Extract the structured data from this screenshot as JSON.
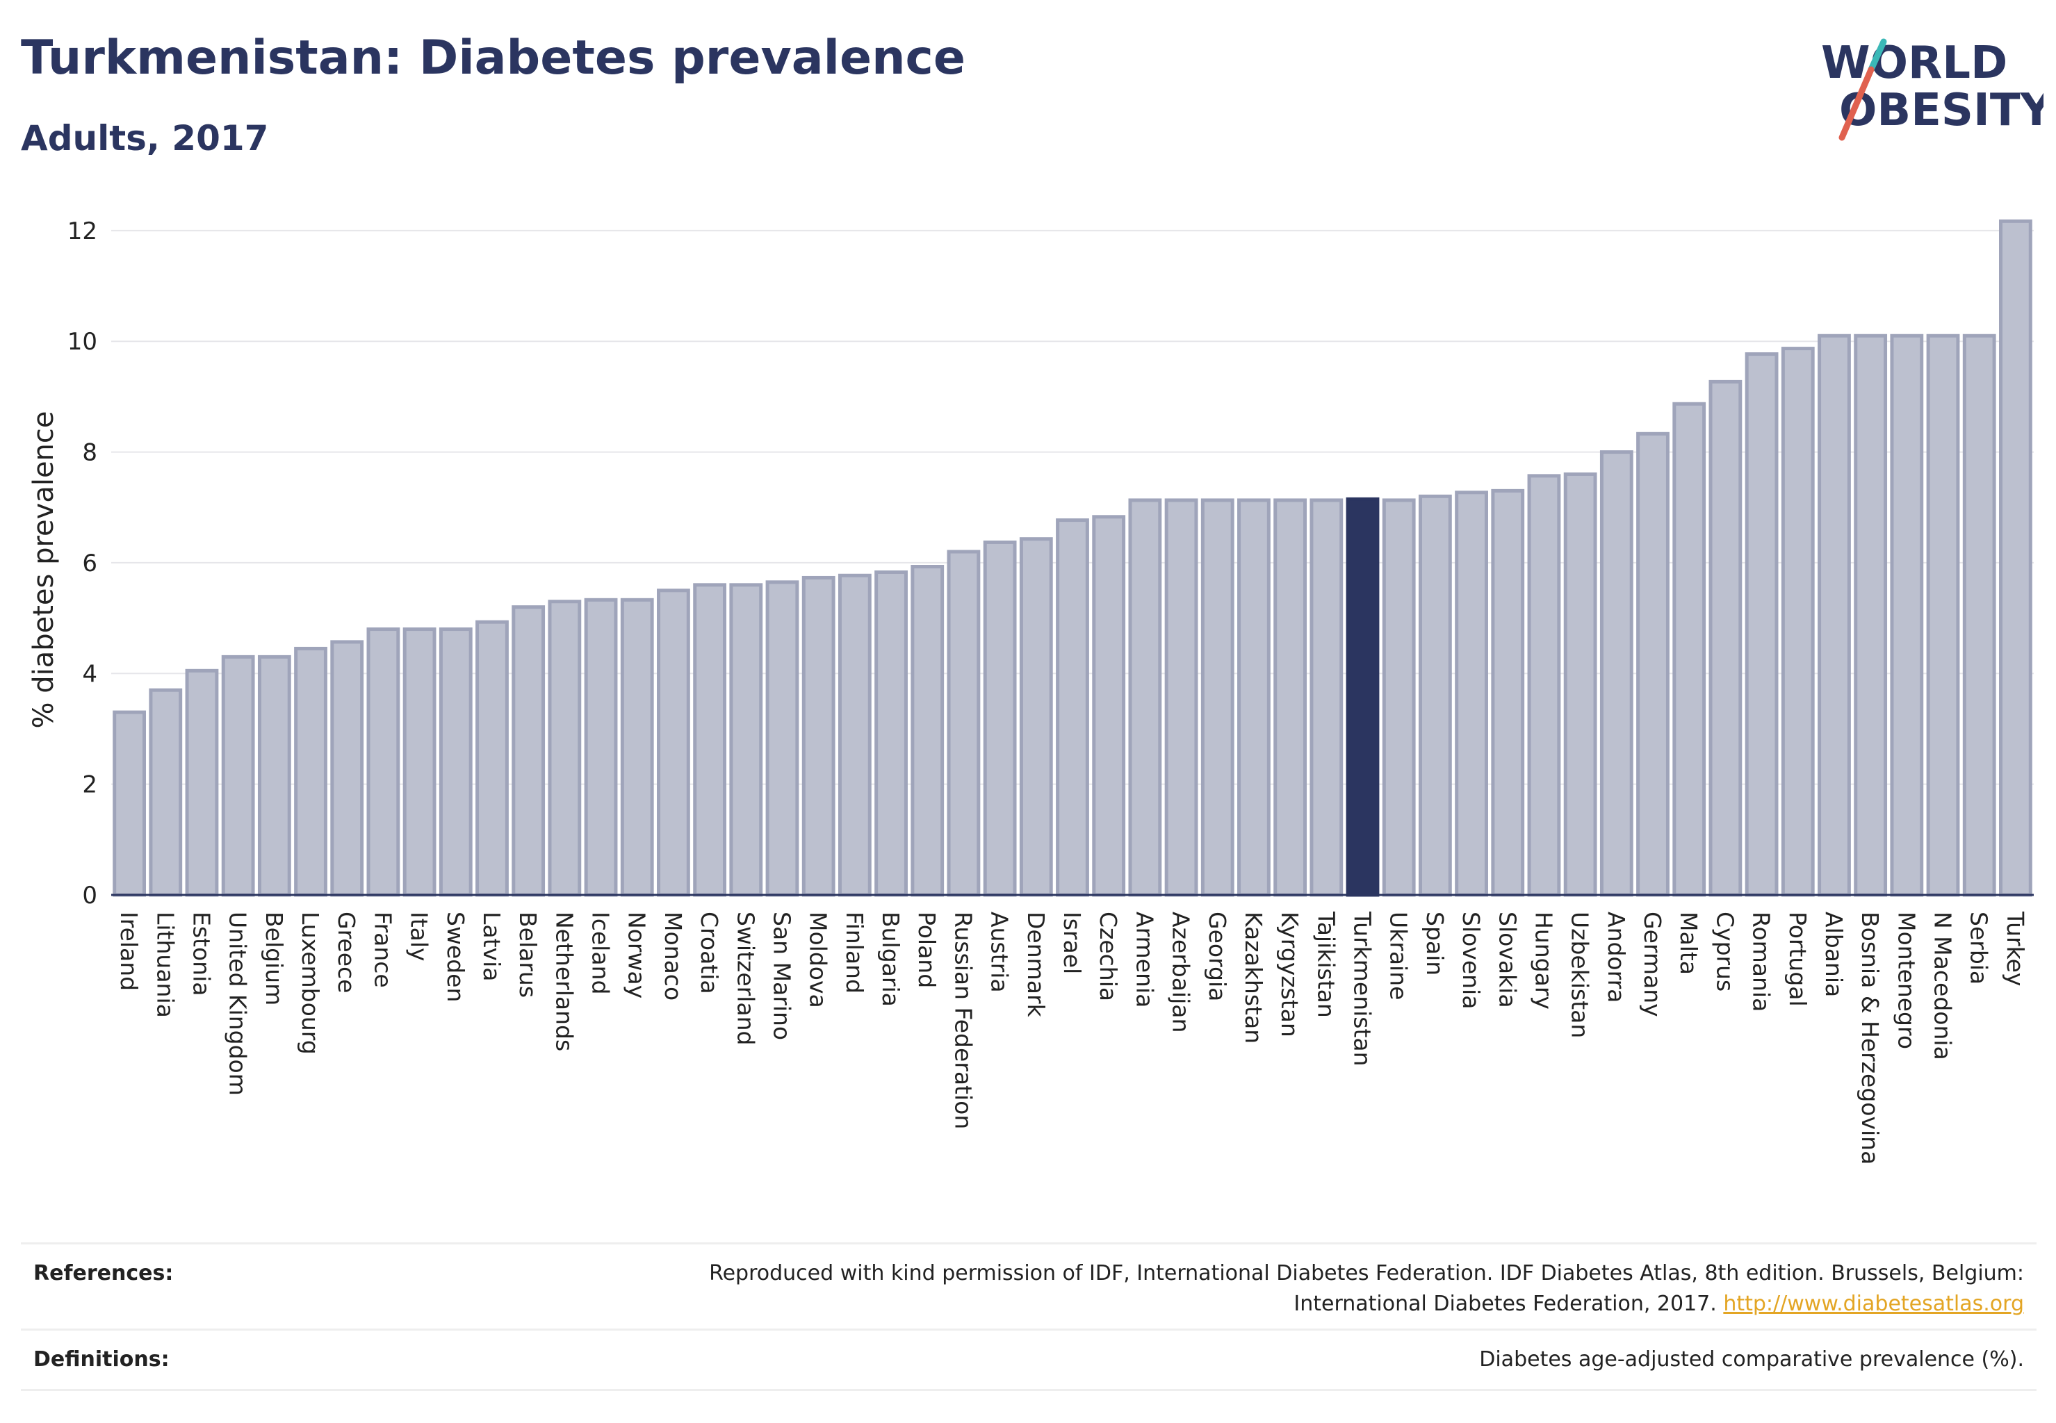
{
  "header": {
    "title": "Turkmenistan: Diabetes prevalence",
    "subtitle": "Adults, 2017"
  },
  "logo": {
    "line1": "WORLD",
    "line2": "OBESITY",
    "accent_colors": [
      "#e0614f",
      "#3bb8b7"
    ]
  },
  "chart_data": {
    "type": "bar",
    "title": "Turkmenistan: Diabetes prevalence",
    "subtitle": "Adults, 2017",
    "ylabel": "% diabetes prevalence",
    "xlabel": "",
    "ylim": [
      0,
      12.4
    ],
    "yticks": [
      0,
      2,
      4,
      6,
      8,
      10,
      12
    ],
    "grid": true,
    "highlight": "Turkmenistan",
    "colors": {
      "bar": "#bcc0cf",
      "bar_edge": "#9fa4ba",
      "highlight": "#2b3560"
    },
    "categories": [
      "Ireland",
      "Lithuania",
      "Estonia",
      "United Kingdom",
      "Belgium",
      "Luxembourg",
      "Greece",
      "France",
      "Italy",
      "Sweden",
      "Latvia",
      "Belarus",
      "Netherlands",
      "Iceland",
      "Norway",
      "Monaco",
      "Croatia",
      "Switzerland",
      "San Marino",
      "Moldova",
      "Finland",
      "Bulgaria",
      "Poland",
      "Russian Federation",
      "Austria",
      "Denmark",
      "Israel",
      "Czechia",
      "Armenia",
      "Azerbaijan",
      "Georgia",
      "Kazakhstan",
      "Kyrgyzstan",
      "Tajikistan",
      "Turkmenistan",
      "Ukraine",
      "Spain",
      "Slovenia",
      "Slovakia",
      "Hungary",
      "Uzbekistan",
      "Andorra",
      "Germany",
      "Malta",
      "Cyprus",
      "Romania",
      "Portugal",
      "Albania",
      "Bosnia & Herzegovina",
      "Montenegro",
      "N Macedonia",
      "Serbia",
      "Turkey"
    ],
    "values": [
      3.3,
      3.7,
      4.05,
      4.3,
      4.3,
      4.45,
      4.57,
      4.8,
      4.8,
      4.8,
      4.93,
      5.2,
      5.3,
      5.33,
      5.33,
      5.5,
      5.6,
      5.6,
      5.65,
      5.73,
      5.77,
      5.83,
      5.93,
      6.2,
      6.37,
      6.43,
      6.77,
      6.83,
      7.13,
      7.13,
      7.13,
      7.13,
      7.13,
      7.13,
      7.15,
      7.13,
      7.2,
      7.27,
      7.3,
      7.57,
      7.6,
      8.0,
      8.33,
      8.87,
      9.27,
      9.77,
      9.87,
      10.1,
      10.1,
      10.1,
      10.1,
      10.1,
      12.17
    ]
  },
  "footer": {
    "references_label": "References:",
    "references_text_1": "Reproduced with kind permission of IDF, International Diabetes Federation. IDF Diabetes Atlas, 8th edition. Brussels, Belgium:",
    "references_text_2": "International Diabetes Federation, 2017.",
    "references_link": "http://www.diabetesatlas.org",
    "definitions_label": "Definitions:",
    "definitions_text": "Diabetes age-adjusted comparative prevalence (%)."
  }
}
